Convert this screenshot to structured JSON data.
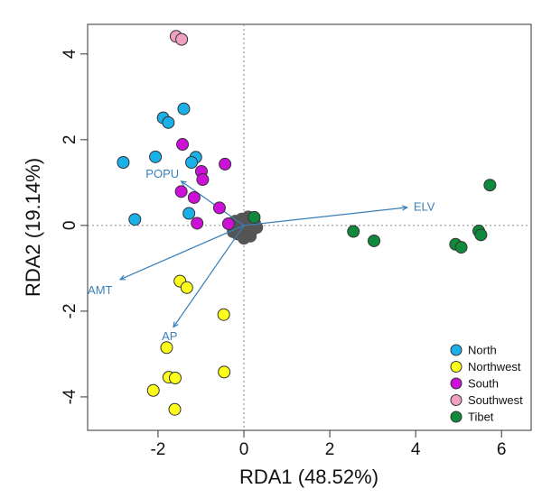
{
  "chart_data": {
    "type": "scatter",
    "title": "",
    "xlabel": "RDA1 (48.52%)",
    "ylabel": "RDA2 (19.14%)",
    "xlim": [
      -3.64,
      6.69
    ],
    "ylim": [
      -4.78,
      4.69
    ],
    "xticks": [
      -2,
      0,
      2,
      4,
      6
    ],
    "yticks": [
      -4,
      -2,
      0,
      2,
      4
    ],
    "grid": false,
    "zero_lines": true,
    "legend_position": "bottom-right",
    "series": [
      {
        "name": "North",
        "color": "#1ab0e8",
        "points": [
          [
            -1.4,
            2.72
          ],
          [
            -1.88,
            2.51
          ],
          [
            -1.76,
            2.4
          ],
          [
            -2.81,
            1.47
          ],
          [
            -2.06,
            1.6
          ],
          [
            -1.12,
            1.59
          ],
          [
            -1.22,
            1.47
          ],
          [
            -1.28,
            0.28
          ],
          [
            -2.54,
            0.14
          ]
        ]
      },
      {
        "name": "Northwest",
        "color": "#ffff1a",
        "points": [
          [
            -1.49,
            -1.3
          ],
          [
            -1.33,
            -1.45
          ],
          [
            -0.47,
            -2.08
          ],
          [
            -1.8,
            -2.85
          ],
          [
            -1.75,
            -3.54
          ],
          [
            -1.6,
            -3.56
          ],
          [
            -0.46,
            -3.42
          ],
          [
            -2.11,
            -3.85
          ],
          [
            -1.61,
            -4.29
          ]
        ]
      },
      {
        "name": "South",
        "color": "#cc10d8",
        "points": [
          [
            -1.43,
            1.89
          ],
          [
            -0.44,
            1.43
          ],
          [
            -0.99,
            1.26
          ],
          [
            -0.96,
            1.07
          ],
          [
            -1.46,
            0.79
          ],
          [
            -1.16,
            0.65
          ],
          [
            -0.57,
            0.41
          ],
          [
            -1.09,
            0.05
          ],
          [
            -0.36,
            0.04
          ]
        ]
      },
      {
        "name": "Southwest",
        "color": "#f0a0c0",
        "points": [
          [
            -1.58,
            4.41
          ],
          [
            -1.45,
            4.34
          ]
        ]
      },
      {
        "name": "Tibet",
        "color": "#0f8a3c",
        "points": [
          [
            0.24,
            0.19
          ],
          [
            2.55,
            -0.14
          ],
          [
            3.03,
            -0.36
          ],
          [
            4.93,
            -0.44
          ],
          [
            5.06,
            -0.51
          ],
          [
            5.47,
            -0.13
          ],
          [
            5.52,
            -0.22
          ],
          [
            5.73,
            0.94
          ]
        ]
      }
    ],
    "cluster": {
      "color": "#555555",
      "points": [
        [
          0,
          0
        ],
        [
          0.1,
          0.05
        ],
        [
          -0.1,
          -0.05
        ],
        [
          0.2,
          -0.1
        ],
        [
          -0.2,
          0.1
        ],
        [
          0.05,
          -0.2
        ],
        [
          -0.05,
          0.15
        ],
        [
          0.25,
          0.05
        ],
        [
          -0.25,
          -0.15
        ],
        [
          0.15,
          -0.25
        ],
        [
          -0.15,
          -0.2
        ],
        [
          0.3,
          -0.05
        ],
        [
          0,
          -0.3
        ],
        [
          -0.3,
          0.05
        ],
        [
          0.1,
          0.2
        ],
        [
          0.22,
          0.15
        ]
      ]
    },
    "vectors": [
      {
        "label": "POPU",
        "x": -1.46,
        "y": 1.03,
        "label_pos": [
          -1.9,
          1.22
        ]
      },
      {
        "label": "AMT",
        "x": -2.88,
        "y": -1.26,
        "label_pos": [
          -3.35,
          -1.5
        ]
      },
      {
        "label": "AP",
        "x": -1.64,
        "y": -2.37,
        "label_pos": [
          -1.73,
          -2.57
        ]
      },
      {
        "label": "ELV",
        "x": 3.8,
        "y": 0.42,
        "label_pos": [
          4.2,
          0.45
        ]
      }
    ],
    "vector_color": "#3a7fb8"
  }
}
